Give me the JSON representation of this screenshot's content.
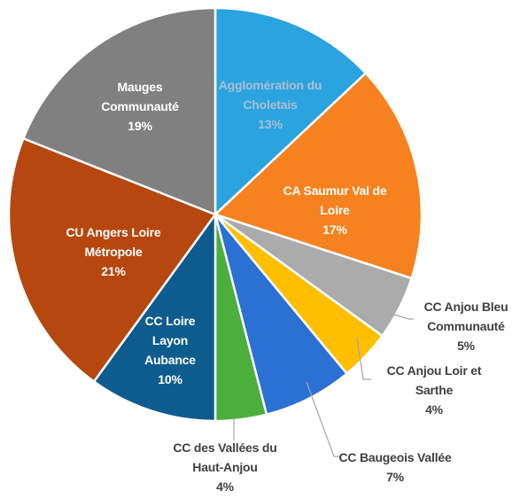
{
  "chart_data": {
    "type": "pie",
    "categories": [
      "Agglomération du Choletais",
      "CA Saumur Val de Loire",
      "CC Anjou Bleu Communauté",
      "CC Anjou Loir et Sarthe",
      "CC Baugeois Vallée",
      "CC des Vallées du Haut-Anjou",
      "CC Loire Layon Aubance",
      "CU Angers Loire Métropole",
      "Mauges Communauté"
    ],
    "values": [
      13,
      17,
      5,
      4,
      7,
      4,
      10,
      21,
      19
    ],
    "value_labels": [
      "13%",
      "17%",
      "5%",
      "4%",
      "7%",
      "4%",
      "10%",
      "21%",
      "19%"
    ],
    "colors": [
      "#2aa3de",
      "#f5821f",
      "#ababab",
      "#ffbf00",
      "#2b70d3",
      "#4caf3c",
      "#0e5b8e",
      "#b5470f",
      "#808080"
    ]
  }
}
